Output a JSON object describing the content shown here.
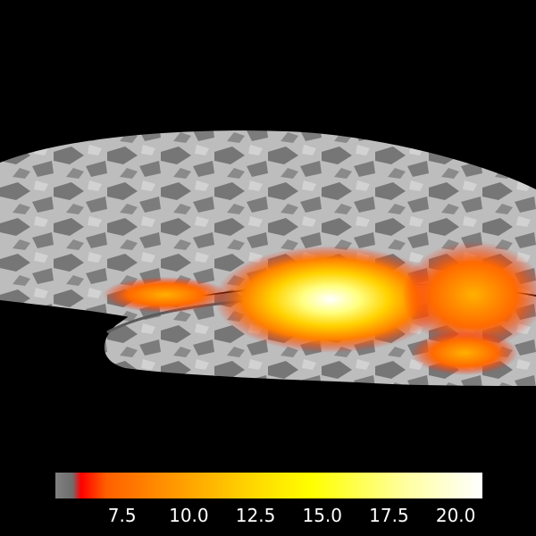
{
  "colorbar": {
    "min": 5.0,
    "max": 21.0,
    "threshold": 5.8,
    "colors": [
      "#808080",
      "#6e6e6e",
      "#ff0000",
      "#ff6000",
      "#ffa000",
      "#ffdd00",
      "#ffff00",
      "#ffffa0",
      "#ffffff"
    ],
    "ticks": [
      "7.5",
      "10.0",
      "12.5",
      "15.0",
      "17.5",
      "20.0"
    ],
    "tick_values": [
      7.5,
      10.0,
      12.5,
      15.0,
      17.5,
      20.0
    ]
  },
  "view": {
    "background": "#000000",
    "surface_light": "#c8c8c8",
    "surface_dark": "#6e6e6e"
  }
}
